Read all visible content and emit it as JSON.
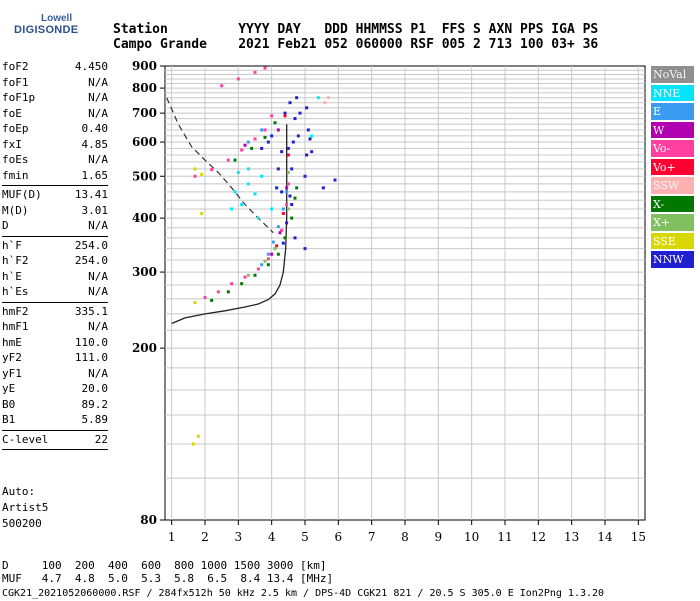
{
  "logo": {
    "line1": "Lowell",
    "line2": "DIGISONDE"
  },
  "header": {
    "row1": "Station         YYYY DAY   DDD HHMMSS P1  FFS S AXN PPS IGA PS",
    "row2": "Campo Grande    2021 Feb21 052 060000 RSF 005 2 713 100 03+ 36"
  },
  "params": {
    "group1": [
      {
        "k": "foF2",
        "v": "4.450"
      },
      {
        "k": "foF1",
        "v": "N/A"
      },
      {
        "k": "foF1p",
        "v": "N/A"
      },
      {
        "k": "foE",
        "v": "N/A"
      },
      {
        "k": "foEp",
        "v": "0.40"
      },
      {
        "k": "fxI",
        "v": "4.85"
      },
      {
        "k": "foEs",
        "v": "N/A"
      },
      {
        "k": "fmin",
        "v": "1.65"
      }
    ],
    "group2": [
      {
        "k": "MUF(D)",
        "v": "13.41"
      },
      {
        "k": "M(D)",
        "v": "3.01"
      },
      {
        "k": "D",
        "v": "N/A"
      }
    ],
    "group3": [
      {
        "k": "h`F",
        "v": "254.0"
      },
      {
        "k": "h`F2",
        "v": "254.0"
      },
      {
        "k": "h`E",
        "v": "N/A"
      },
      {
        "k": "h`Es",
        "v": "N/A"
      }
    ],
    "group4": [
      {
        "k": "hmF2",
        "v": "335.1"
      },
      {
        "k": "hmF1",
        "v": "N/A"
      },
      {
        "k": "hmE",
        "v": "110.0"
      },
      {
        "k": "yF2",
        "v": "111.0"
      },
      {
        "k": "yF1",
        "v": "N/A"
      },
      {
        "k": "yE",
        "v": "20.0"
      },
      {
        "k": "B0",
        "v": "89.2"
      },
      {
        "k": "B1",
        "v": "5.89"
      }
    ],
    "group5": [
      {
        "k": "C-level",
        "v": "22"
      }
    ]
  },
  "auto": {
    "line1": "Auto:",
    "line2": "Artist5",
    "line3": "500200"
  },
  "legend": [
    {
      "label": "NoVal",
      "color": "#8f8f8f"
    },
    {
      "label": "NNE",
      "color": "#00e5ff"
    },
    {
      "label": "E",
      "color": "#3a9cf0"
    },
    {
      "label": "W",
      "color": "#b000b0"
    },
    {
      "label": "Vo-",
      "color": "#ff40a0"
    },
    {
      "label": "Vo+",
      "color": "#ff0033"
    },
    {
      "label": "SSW",
      "color": "#ffb0b0"
    },
    {
      "label": "X-",
      "color": "#007800"
    },
    {
      "label": "X+",
      "color": "#80c060"
    },
    {
      "label": "SSE",
      "color": "#d8d800"
    },
    {
      "label": "NNW",
      "color": "#2020d0"
    }
  ],
  "footer": {
    "line1": "D     100  200  400  600  800 1000 1500 3000 [km]",
    "line2": "MUF   4.7  4.8  5.0  5.3  5.8  6.5  8.4 13.4 [MHz]",
    "line3": "CGK21_2021052060000.RSF / 284fx512h 50 kHz 2.5 km / DPS-4D CGK21 821 / 20.5 S 305.0 E Ion2Png 1.3.20"
  },
  "chart_data": {
    "type": "scatter",
    "title": "",
    "xlabel": "",
    "ylabel": "",
    "xlim": [
      0.8,
      15.2
    ],
    "ylim": [
      80,
      900
    ],
    "x_ticks": [
      1,
      2,
      3,
      4,
      5,
      6,
      7,
      8,
      9,
      10,
      11,
      12,
      13,
      14,
      15
    ],
    "y_ticks": [
      80,
      200,
      300,
      400,
      500,
      600,
      700,
      800,
      900
    ],
    "grid": true,
    "log_y": true,
    "series": [
      {
        "name": "Vo-",
        "color": "#ff40a0",
        "points": [
          [
            1.7,
            255
          ],
          [
            2.0,
            262
          ],
          [
            2.4,
            270
          ],
          [
            2.8,
            282
          ],
          [
            3.2,
            292
          ],
          [
            3.6,
            305
          ],
          [
            3.9,
            322
          ],
          [
            4.1,
            340
          ],
          [
            4.3,
            375
          ],
          [
            4.45,
            430
          ],
          [
            4.5,
            480
          ],
          [
            1.7,
            500
          ],
          [
            2.2,
            518
          ],
          [
            2.7,
            545
          ],
          [
            3.1,
            575
          ],
          [
            3.5,
            610
          ],
          [
            3.8,
            640
          ],
          [
            4.0,
            690
          ],
          [
            2.5,
            810
          ],
          [
            3.0,
            840
          ],
          [
            3.5,
            870
          ],
          [
            3.8,
            890
          ]
        ]
      },
      {
        "name": "X-",
        "color": "#007800",
        "points": [
          [
            2.2,
            258
          ],
          [
            2.7,
            270
          ],
          [
            3.1,
            282
          ],
          [
            3.5,
            295
          ],
          [
            3.9,
            312
          ],
          [
            4.2,
            330
          ],
          [
            4.4,
            360
          ],
          [
            4.6,
            400
          ],
          [
            4.7,
            445
          ],
          [
            4.75,
            470
          ],
          [
            2.9,
            545
          ],
          [
            3.4,
            580
          ],
          [
            3.8,
            615
          ],
          [
            4.1,
            665
          ]
        ]
      },
      {
        "name": "E",
        "color": "#3a9cf0",
        "points": [
          [
            3.7,
            312
          ],
          [
            3.9,
            330
          ],
          [
            4.05,
            352
          ],
          [
            4.2,
            382
          ],
          [
            4.35,
            420
          ],
          [
            4.45,
            460
          ],
          [
            3.3,
            600
          ],
          [
            3.7,
            640
          ]
        ]
      },
      {
        "name": "NNW",
        "color": "#2020d0",
        "points": [
          [
            4.45,
            390
          ],
          [
            4.55,
            450
          ],
          [
            4.6,
            520
          ],
          [
            4.65,
            600
          ],
          [
            4.7,
            680
          ],
          [
            4.75,
            760
          ],
          [
            5.0,
            500
          ],
          [
            5.05,
            560
          ],
          [
            5.1,
            640
          ],
          [
            5.15,
            610
          ],
          [
            4.85,
            700
          ],
          [
            4.8,
            620
          ],
          [
            5.2,
            570
          ],
          [
            4.5,
            580
          ],
          [
            3.7,
            580
          ],
          [
            3.9,
            600
          ],
          [
            4.0,
            620
          ],
          [
            4.2,
            520
          ],
          [
            4.3,
            570
          ],
          [
            4.4,
            700
          ],
          [
            4.55,
            740
          ],
          [
            5.05,
            720
          ],
          [
            4.6,
            430
          ],
          [
            4.3,
            460
          ],
          [
            4.15,
            470
          ],
          [
            5.0,
            340
          ],
          [
            5.9,
            490
          ],
          [
            5.55,
            470
          ],
          [
            4.35,
            350
          ],
          [
            4.7,
            360
          ]
        ]
      },
      {
        "name": "NNE",
        "color": "#00e5ff",
        "points": [
          [
            2.9,
            460
          ],
          [
            3.1,
            430
          ],
          [
            3.3,
            480
          ],
          [
            3.5,
            455
          ],
          [
            3.7,
            500
          ],
          [
            3.0,
            510
          ],
          [
            2.8,
            420
          ],
          [
            3.3,
            520
          ],
          [
            3.6,
            400
          ],
          [
            4.0,
            420
          ],
          [
            5.2,
            620
          ],
          [
            5.4,
            760
          ]
        ]
      },
      {
        "name": "SSE",
        "color": "#d8d800",
        "points": [
          [
            1.7,
            520
          ],
          [
            1.9,
            505
          ],
          [
            1.9,
            410
          ],
          [
            1.7,
            255
          ],
          [
            1.65,
            120
          ],
          [
            1.8,
            125
          ]
        ]
      },
      {
        "name": "Vo+",
        "color": "#ff0033",
        "points": [
          [
            4.15,
            345
          ],
          [
            4.35,
            410
          ],
          [
            4.5,
            560
          ],
          [
            4.4,
            690
          ]
        ]
      },
      {
        "name": "X+",
        "color": "#80c060",
        "points": [
          [
            3.3,
            295
          ],
          [
            3.8,
            318
          ],
          [
            4.1,
            340
          ],
          [
            4.5,
            420
          ],
          [
            4.5,
            510
          ]
        ]
      },
      {
        "name": "W",
        "color": "#b000b0",
        "points": [
          [
            4.0,
            330
          ],
          [
            4.25,
            370
          ],
          [
            4.45,
            470
          ],
          [
            4.2,
            640
          ],
          [
            3.2,
            590
          ]
        ]
      },
      {
        "name": "SSW",
        "color": "#ffb0b0",
        "points": [
          [
            5.6,
            740
          ],
          [
            5.7,
            760
          ]
        ]
      }
    ],
    "profile_curve": [
      [
        1.0,
        228
      ],
      [
        1.4,
        235
      ],
      [
        2.0,
        240
      ],
      [
        2.6,
        244
      ],
      [
        3.2,
        249
      ],
      [
        3.6,
        253
      ],
      [
        3.9,
        259
      ],
      [
        4.1,
        267
      ],
      [
        4.25,
        280
      ],
      [
        4.35,
        300
      ],
      [
        4.42,
        340
      ],
      [
        4.45,
        400
      ],
      [
        4.45,
        500
      ],
      [
        4.45,
        600
      ],
      [
        4.45,
        660
      ]
    ],
    "dashed_curve": [
      [
        0.85,
        760
      ],
      [
        1.2,
        660
      ],
      [
        1.6,
        585
      ],
      [
        2.0,
        545
      ],
      [
        2.4,
        510
      ],
      [
        2.8,
        470
      ],
      [
        3.2,
        430
      ],
      [
        3.6,
        400
      ],
      [
        3.9,
        380
      ],
      [
        4.05,
        370
      ]
    ]
  }
}
